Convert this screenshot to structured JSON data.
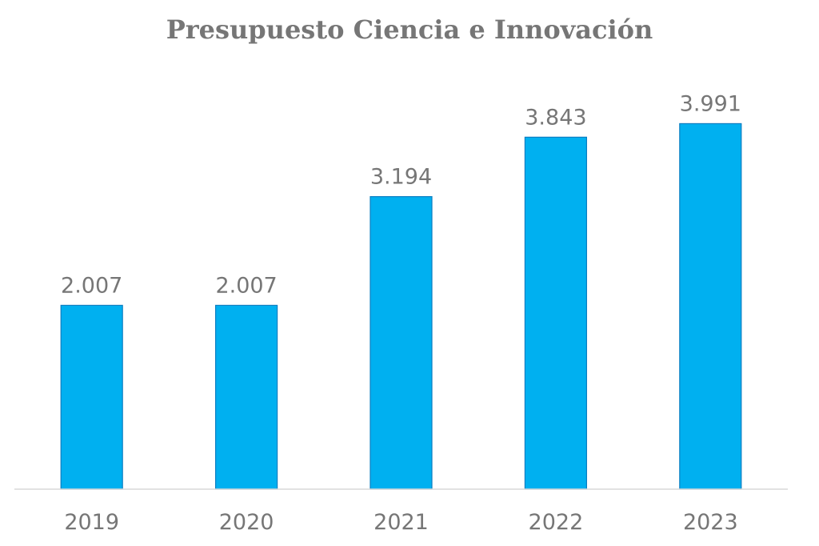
{
  "chart_data": {
    "type": "bar",
    "title": "Presupuesto Ciencia e Innovación",
    "xlabel": "",
    "ylabel": "",
    "categories": [
      "2019",
      "2020",
      "2021",
      "2022",
      "2023"
    ],
    "values": [
      2007,
      2007,
      3194,
      3843,
      3991
    ],
    "value_labels": [
      "2.007",
      "2.007",
      "3.194",
      "3.843",
      "3.991"
    ],
    "ylim": [
      0,
      4000
    ],
    "grid": false,
    "legend": "none",
    "bar_color": "#00B0F0",
    "bar_border_color": "#0A7EC2",
    "axis_color": "#D9D9D9",
    "text_color": "#767676"
  }
}
